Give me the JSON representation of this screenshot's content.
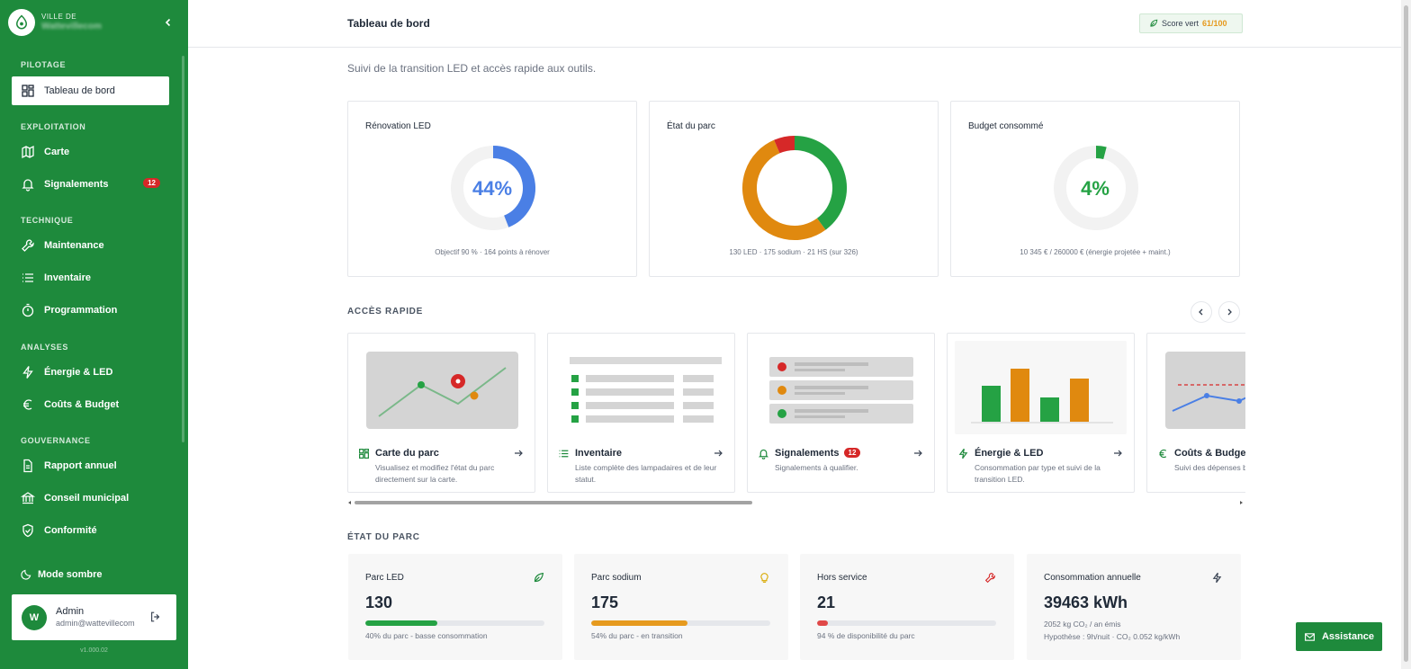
{
  "brand": {
    "subtitle": "VILLE DE",
    "name": "Wattevillecom"
  },
  "sidebar": {
    "sections": [
      {
        "label": "PILOTAGE"
      },
      {
        "label": "EXPLOITATION"
      },
      {
        "label": "TECHNIQUE"
      },
      {
        "label": "ANALYSES"
      },
      {
        "label": "GOUVERNANCE"
      }
    ],
    "items": [
      {
        "label": "Tableau de bord",
        "icon": "grid-icon",
        "active": true
      },
      {
        "label": "Carte",
        "icon": "map-icon"
      },
      {
        "label": "Signalements",
        "icon": "bell-icon",
        "badge": "12"
      },
      {
        "label": "Maintenance",
        "icon": "wrench-icon"
      },
      {
        "label": "Inventaire",
        "icon": "list-icon"
      },
      {
        "label": "Programmation",
        "icon": "timer-icon"
      },
      {
        "label": "Énergie & LED",
        "icon": "bolt-icon"
      },
      {
        "label": "Coûts & Budget",
        "icon": "euro-icon"
      },
      {
        "label": "Rapport annuel",
        "icon": "document-icon"
      },
      {
        "label": "Conseil municipal",
        "icon": "building-icon"
      },
      {
        "label": "Conformité",
        "icon": "shield-icon"
      }
    ],
    "dark_mode_label": "Mode sombre",
    "user": {
      "initial": "W",
      "name": "Admin",
      "email": "admin@wattevillecom"
    },
    "version": "v1.000.02"
  },
  "header": {
    "title": "Tableau de bord",
    "score_label": "Score vert",
    "score_value": "61/100"
  },
  "subtitle": "Suivi de la transition LED et accès rapide aux outils.",
  "kpis": [
    {
      "title": "Rénovation LED",
      "value": "44%",
      "fraction": 0.44,
      "color": "#4a7fe5",
      "caption": "Objectif 90 % · 164 points à rénover"
    },
    {
      "title": "État du parc",
      "segments": [
        {
          "name": "LED",
          "value": 130,
          "color": "#25a244"
        },
        {
          "name": "sodium",
          "value": 175,
          "color": "#e0890f"
        },
        {
          "name": "HS",
          "value": 21,
          "color": "#d62828"
        }
      ],
      "caption": "130 LED · 175 sodium · 21 HS (sur 326)"
    },
    {
      "title": "Budget consommé",
      "value": "4%",
      "fraction": 0.04,
      "color": "#25a244",
      "caption": "10 345 € / 260000 € (énergie projetée + maint.)"
    }
  ],
  "quick_access": {
    "label": "ACCÈS RAPIDE",
    "cards": [
      {
        "title": "Carte du parc",
        "icon": "grid-icon",
        "desc": "Visualisez et modifiez l'état du parc directement sur la carte."
      },
      {
        "title": "Inventaire",
        "icon": "list-icon",
        "desc": "Liste complète des lampadaires et de leur statut."
      },
      {
        "title": "Signalements",
        "icon": "bell-icon",
        "badge": "12",
        "desc": "Signalements à qualifier."
      },
      {
        "title": "Énergie & LED",
        "icon": "bolt-icon",
        "desc": "Consommation par type et suivi de la transition LED."
      },
      {
        "title": "Coûts & Budget",
        "icon": "euro-icon",
        "desc": "Suivi des dépenses budgétaires."
      }
    ]
  },
  "parc": {
    "label": "ÉTAT DU PARC",
    "stats": [
      {
        "title": "Parc LED",
        "value": "130",
        "fraction": 0.4,
        "color": "#25a244",
        "icon": "leaf-icon",
        "note": "40% du parc - basse consommation"
      },
      {
        "title": "Parc sodium",
        "value": "175",
        "fraction": 0.54,
        "color": "#e69a1e",
        "icon": "bulb-icon",
        "note": "54% du parc - en transition"
      },
      {
        "title": "Hors service",
        "value": "21",
        "fraction": 0.06,
        "color": "#e04848",
        "icon": "wrench-icon",
        "note": "94 % de disponibilité du parc"
      },
      {
        "title": "Consommation annuelle",
        "value": "39463 kWh",
        "icon": "bolt-icon",
        "note": "2052 kg CO₂ / an émis",
        "note2": "Hypothèse : 9h/nuit · CO₂ 0.052 kg/kWh"
      }
    ]
  },
  "assist_label": "Assistance"
}
